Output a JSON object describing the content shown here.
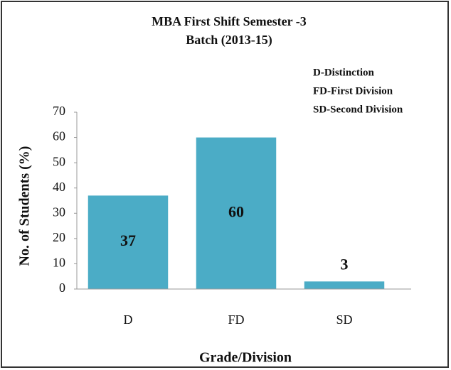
{
  "chart_data": {
    "type": "bar",
    "title": [
      "MBA  First Shift Semester -3",
      "Batch (2013-15)"
    ],
    "annotations": [
      "D-Distinction",
      "FD-First Division",
      "SD-Second Division"
    ],
    "x_label": "Grade/Division",
    "y_label": "No. of Students (%)",
    "categories": [
      "D",
      "FD",
      "SD"
    ],
    "values": [
      37,
      60,
      3
    ],
    "color": "#4bacc6",
    "ylim": [
      0,
      70
    ],
    "yticks": [
      0,
      10,
      20,
      30,
      40,
      50,
      60,
      70
    ],
    "grid": false
  }
}
